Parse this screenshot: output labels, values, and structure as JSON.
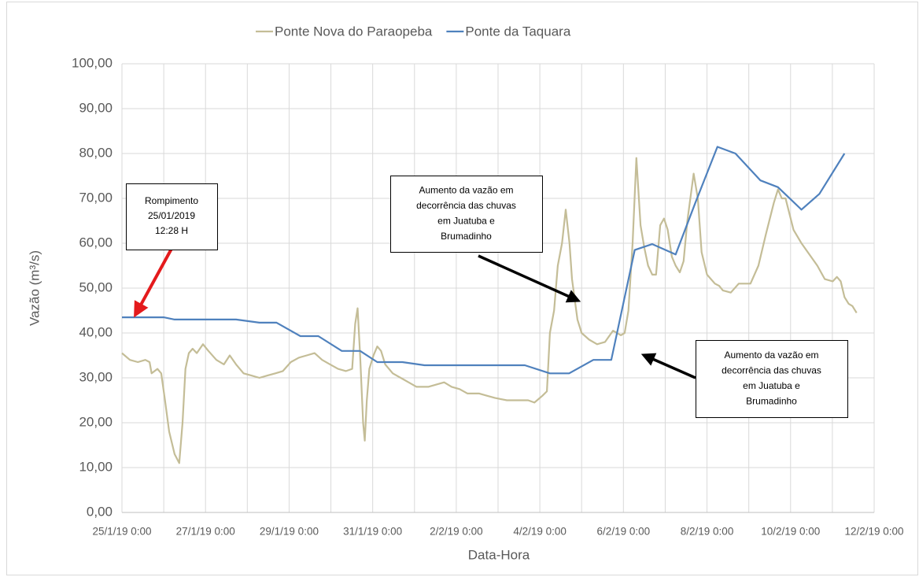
{
  "chart_data": {
    "type": "line",
    "xlabel": "Data-Hora",
    "ylabel": "Vazão (m³/s)",
    "xlim": [
      43490,
      43508
    ],
    "ylim": [
      0,
      100
    ],
    "xticks": [
      {
        "value": 43490,
        "label": "25/1/19 0:00"
      },
      {
        "value": 43492,
        "label": "27/1/19 0:00"
      },
      {
        "value": 43494,
        "label": "29/1/19 0:00"
      },
      {
        "value": 43496,
        "label": "31/1/19 0:00"
      },
      {
        "value": 43498,
        "label": "2/2/19 0:00"
      },
      {
        "value": 43500,
        "label": "4/2/19 0:00"
      },
      {
        "value": 43502,
        "label": "6/2/19 0:00"
      },
      {
        "value": 43504,
        "label": "8/2/19 0:00"
      },
      {
        "value": 43506,
        "label": "10/2/19 0:00"
      },
      {
        "value": 43508,
        "label": "12/2/19 0:00"
      }
    ],
    "yticks": [
      {
        "value": 0,
        "label": "0,00"
      },
      {
        "value": 10,
        "label": "10,00"
      },
      {
        "value": 20,
        "label": "20,00"
      },
      {
        "value": 30,
        "label": "30,00"
      },
      {
        "value": 40,
        "label": "40,00"
      },
      {
        "value": 50,
        "label": "50,00"
      },
      {
        "value": 60,
        "label": "60,00"
      },
      {
        "value": 70,
        "label": "70,00"
      },
      {
        "value": 80,
        "label": "80,00"
      },
      {
        "value": 90,
        "label": "90,00"
      },
      {
        "value": 100,
        "label": "100,00"
      }
    ],
    "grid": true,
    "legend": "top",
    "series": [
      {
        "name": "Ponte Nova do Paraopeba",
        "color": "#c4bd97",
        "x": [
          43490,
          43490.19,
          43490.38,
          43490.56,
          43490.66,
          43490.71,
          43490.85,
          43490.94,
          43491.03,
          43491.13,
          43491.26,
          43491.37,
          43491.45,
          43491.52,
          43491.6,
          43491.69,
          43491.79,
          43491.94,
          43492.07,
          43492.26,
          43492.44,
          43492.58,
          43492.73,
          43492.91,
          43493.1,
          43493.29,
          43493.48,
          43493.67,
          43493.85,
          43494.04,
          43494.23,
          43494.42,
          43494.61,
          43494.79,
          43494.98,
          43495.17,
          43495.36,
          43495.51,
          43495.58,
          43495.64,
          43495.7,
          43495.77,
          43495.81,
          43495.86,
          43495.92,
          43496.02,
          43496.11,
          43496.2,
          43496.3,
          43496.48,
          43496.67,
          43496.86,
          43497.05,
          43497.33,
          43497.52,
          43497.71,
          43497.89,
          43498.08,
          43498.27,
          43498.55,
          43498.74,
          43498.93,
          43499.21,
          43499.49,
          43499.72,
          43499.87,
          43500.06,
          43500.17,
          43500.24,
          43500.34,
          43500.43,
          43500.53,
          43500.62,
          43500.71,
          43500.77,
          43500.9,
          43501,
          43501.18,
          43501.37,
          43501.56,
          43501.75,
          43501.94,
          43502.03,
          43502.12,
          43502.22,
          43502.31,
          43502.41,
          43502.5,
          43502.59,
          43502.69,
          43502.78,
          43502.88,
          43502.97,
          43503.06,
          43503.16,
          43503.25,
          43503.35,
          43503.44,
          43503.53,
          43503.68,
          43503.78,
          43503.87,
          43504,
          43504.19,
          43504.29,
          43504.38,
          43504.57,
          43504.76,
          43505.04,
          43505.23,
          43505.41,
          43505.6,
          43505.7,
          43505.79,
          43505.88,
          43506.07,
          43506.26,
          43506.45,
          43506.64,
          43506.82,
          43507.01,
          43507.11,
          43507.2,
          43507.29,
          43507.39,
          43507.48,
          43507.58
        ],
        "values": [
          35.5,
          34,
          33.5,
          34,
          33.5,
          31,
          32,
          31,
          25,
          18,
          13,
          11,
          20,
          32,
          35.5,
          36.5,
          35.5,
          37.5,
          36,
          34,
          33,
          35,
          33,
          31,
          30.5,
          30,
          30.5,
          31,
          31.5,
          33.5,
          34.5,
          35,
          35.5,
          34,
          33,
          32,
          31.5,
          32,
          42,
          45.5,
          35,
          20,
          16,
          25,
          32,
          35,
          37,
          36,
          33,
          31,
          30,
          29,
          28,
          28,
          28.5,
          29,
          28,
          27.5,
          26.5,
          26.5,
          26,
          25.5,
          25,
          25,
          25,
          24.5,
          26,
          27,
          40,
          45,
          55,
          60,
          67.5,
          60,
          52,
          43,
          40,
          38.5,
          37.5,
          38,
          40.5,
          39.5,
          40,
          45,
          60,
          79,
          64,
          59,
          55,
          53,
          53,
          64,
          65.5,
          63,
          57,
          55,
          53.5,
          56,
          65,
          75.5,
          70,
          58,
          53,
          51,
          50.5,
          49.5,
          49,
          51,
          51,
          55,
          62,
          69,
          72,
          70,
          70,
          63,
          60,
          57.5,
          55,
          52,
          51.5,
          52.5,
          51.5,
          48,
          46.5,
          46,
          44.5
        ]
      },
      {
        "name": "Ponte da Taquara",
        "color": "#4f81bd",
        "x": [
          43490,
          43491,
          43491.26,
          43492.73,
          43493.29,
          43493.7,
          43494.27,
          43494.7,
          43495.26,
          43495.7,
          43496.11,
          43496.71,
          43497.24,
          43499.64,
          43500.24,
          43500.7,
          43501.28,
          43501.71,
          43502.27,
          43502.69,
          43503.25,
          43503.72,
          43504.25,
          43504.68,
          43505.28,
          43505.7,
          43506.26,
          43506.69,
          43507.29
        ],
        "values": [
          43.5,
          43.5,
          43,
          43,
          42.3,
          42.3,
          39.3,
          39.3,
          36,
          36,
          33.5,
          33.5,
          32.8,
          32.8,
          31,
          31,
          34,
          34,
          58.5,
          59.8,
          57.5,
          69,
          81.5,
          80,
          74,
          72.5,
          67.5,
          71,
          80
        ]
      }
    ],
    "annotations": [
      {
        "lines": [
          "Rompimento",
          "25/01/2019",
          "12:28 H"
        ]
      },
      {
        "lines": [
          "Aumento da vazão em",
          "decorrência das chuvas",
          "em Juatuba e",
          "Brumadinho"
        ]
      },
      {
        "lines": [
          "Aumento da vazão em",
          "decorrência das chuvas",
          "em Juatuba e",
          "Brumadinho"
        ]
      }
    ]
  }
}
